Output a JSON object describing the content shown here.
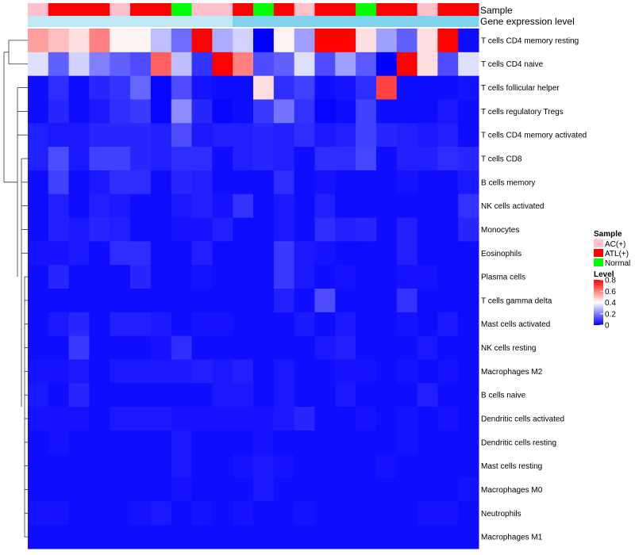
{
  "chart_data": {
    "type": "heatmap",
    "title": "",
    "annotation_labels": [
      "Sample",
      "Gene expression level"
    ],
    "sample_groups": [
      "AC(+)",
      "ATL(+)",
      "ATL(+)",
      "ATL(+)",
      "AC(+)",
      "ATL(+)",
      "ATL(+)",
      "Normal",
      "AC(+)",
      "AC(+)",
      "ATL(+)",
      "Normal",
      "ATL(+)",
      "AC(+)",
      "ATL(+)",
      "ATL(+)",
      "Normal",
      "ATL(+)",
      "ATL(+)",
      "AC(+)",
      "ATL(+)",
      "ATL(+)"
    ],
    "group_colors": {
      "AC(+)": "#ffc0cb",
      "ATL(+)": "#ff0000",
      "Normal": "#00ff00"
    },
    "expression_colors": [
      "#bfe8f4",
      "#bfe8f4",
      "#bfe8f4",
      "#bfe8f4",
      "#bfe8f4",
      "#bfe8f4",
      "#bfe8f4",
      "#bfe8f4",
      "#bfe8f4",
      "#bfe8f4",
      "#7fd3ec",
      "#7fd3ec",
      "#7fd3ec",
      "#7fd3ec",
      "#7fd3ec",
      "#7fd3ec",
      "#7fd3ec",
      "#7fd3ec",
      "#7fd3ec",
      "#7fd3ec",
      "#7fd3ec",
      "#7fd3ec"
    ],
    "rows": [
      "T cells CD4 memory resting",
      "T cells CD4 naive",
      "T cells follicular helper",
      "T cells regulatory  Tregs",
      "T cells CD4 memory activated",
      "T cells CD8",
      "B cells memory",
      "NK cells activated",
      "Monocytes",
      "Eosinophils",
      "Plasma cells",
      "T cells gamma delta",
      "Mast cells activated",
      "NK cells resting",
      "Macrophages M2",
      "B cells naive",
      "Dendritic cells activated",
      "Dendritic cells resting",
      "Mast cells resting",
      "Macrophages M0",
      "Neutrophils",
      "Macrophages M1"
    ],
    "values": [
      [
        0.55,
        0.5,
        0.45,
        0.6,
        0.42,
        0.42,
        0.3,
        0.17,
        0.8,
        0.27,
        0.33,
        0.0,
        0.42,
        0.25,
        0.8,
        0.8,
        0.45,
        0.25,
        0.15,
        0.45,
        0.8,
        0.02
      ],
      [
        0.35,
        0.15,
        0.33,
        0.2,
        0.15,
        0.12,
        0.65,
        0.3,
        0.08,
        0.8,
        0.6,
        0.12,
        0.15,
        0.35,
        0.12,
        0.25,
        0.14,
        0.0,
        0.8,
        0.45,
        0.12,
        0.35
      ],
      [
        0.02,
        0.07,
        0.02,
        0.06,
        0.08,
        0.16,
        0.01,
        0.12,
        0.03,
        0.02,
        0.02,
        0.45,
        0.07,
        0.1,
        0.02,
        0.03,
        0.07,
        0.7,
        0.02,
        0.02,
        0.02,
        0.03
      ],
      [
        0.02,
        0.06,
        0.02,
        0.04,
        0.07,
        0.09,
        0.01,
        0.22,
        0.06,
        0.01,
        0.02,
        0.09,
        0.18,
        0.08,
        0.01,
        0.02,
        0.1,
        0.02,
        0.02,
        0.02,
        0.04,
        0.02
      ],
      [
        0.05,
        0.04,
        0.04,
        0.06,
        0.06,
        0.06,
        0.05,
        0.12,
        0.04,
        0.05,
        0.05,
        0.06,
        0.05,
        0.07,
        0.04,
        0.05,
        0.1,
        0.06,
        0.05,
        0.04,
        0.05,
        0.02
      ],
      [
        0.05,
        0.12,
        0.04,
        0.1,
        0.1,
        0.06,
        0.05,
        0.07,
        0.07,
        0.02,
        0.05,
        0.06,
        0.05,
        0.02,
        0.07,
        0.07,
        0.11,
        0.02,
        0.05,
        0.05,
        0.07,
        0.06
      ],
      [
        0.02,
        0.1,
        0.02,
        0.04,
        0.07,
        0.07,
        0.02,
        0.06,
        0.05,
        0.02,
        0.02,
        0.02,
        0.07,
        0.02,
        0.03,
        0.02,
        0.02,
        0.02,
        0.03,
        0.02,
        0.02,
        0.04
      ],
      [
        0.02,
        0.05,
        0.02,
        0.05,
        0.04,
        0.02,
        0.02,
        0.04,
        0.05,
        0.03,
        0.08,
        0.02,
        0.04,
        0.02,
        0.05,
        0.02,
        0.02,
        0.02,
        0.02,
        0.02,
        0.02,
        0.08
      ],
      [
        0.02,
        0.05,
        0.04,
        0.06,
        0.05,
        0.02,
        0.02,
        0.03,
        0.03,
        0.05,
        0.02,
        0.02,
        0.04,
        0.02,
        0.07,
        0.05,
        0.06,
        0.02,
        0.05,
        0.02,
        0.02,
        0.06
      ],
      [
        0.03,
        0.03,
        0.04,
        0.02,
        0.07,
        0.07,
        0.02,
        0.02,
        0.05,
        0.02,
        0.02,
        0.02,
        0.09,
        0.04,
        0.03,
        0.02,
        0.02,
        0.02,
        0.05,
        0.02,
        0.02,
        0.02
      ],
      [
        0.02,
        0.06,
        0.02,
        0.02,
        0.02,
        0.06,
        0.02,
        0.02,
        0.03,
        0.02,
        0.02,
        0.02,
        0.09,
        0.04,
        0.02,
        0.03,
        0.02,
        0.02,
        0.03,
        0.03,
        0.02,
        0.02
      ],
      [
        0.02,
        0.02,
        0.02,
        0.02,
        0.02,
        0.02,
        0.02,
        0.02,
        0.02,
        0.02,
        0.02,
        0.02,
        0.05,
        0.02,
        0.12,
        0.02,
        0.02,
        0.02,
        0.08,
        0.02,
        0.02,
        0.02
      ],
      [
        0.02,
        0.04,
        0.06,
        0.02,
        0.05,
        0.05,
        0.04,
        0.02,
        0.03,
        0.03,
        0.02,
        0.02,
        0.02,
        0.04,
        0.02,
        0.04,
        0.02,
        0.02,
        0.03,
        0.02,
        0.04,
        0.02
      ],
      [
        0.02,
        0.02,
        0.09,
        0.02,
        0.02,
        0.02,
        0.03,
        0.07,
        0.02,
        0.02,
        0.02,
        0.02,
        0.02,
        0.02,
        0.04,
        0.05,
        0.02,
        0.02,
        0.02,
        0.04,
        0.02,
        0.02
      ],
      [
        0.03,
        0.03,
        0.04,
        0.02,
        0.04,
        0.04,
        0.04,
        0.04,
        0.05,
        0.04,
        0.05,
        0.02,
        0.04,
        0.02,
        0.02,
        0.03,
        0.03,
        0.02,
        0.03,
        0.02,
        0.03,
        0.02
      ],
      [
        0.04,
        0.02,
        0.06,
        0.02,
        0.02,
        0.02,
        0.02,
        0.02,
        0.02,
        0.04,
        0.04,
        0.02,
        0.04,
        0.02,
        0.02,
        0.04,
        0.02,
        0.02,
        0.02,
        0.05,
        0.02,
        0.02
      ],
      [
        0.03,
        0.03,
        0.03,
        0.02,
        0.04,
        0.04,
        0.04,
        0.03,
        0.03,
        0.03,
        0.03,
        0.03,
        0.04,
        0.06,
        0.02,
        0.02,
        0.03,
        0.02,
        0.03,
        0.02,
        0.03,
        0.02
      ],
      [
        0.02,
        0.03,
        0.02,
        0.02,
        0.02,
        0.02,
        0.02,
        0.04,
        0.02,
        0.02,
        0.02,
        0.03,
        0.02,
        0.02,
        0.02,
        0.02,
        0.02,
        0.02,
        0.03,
        0.02,
        0.02,
        0.02
      ],
      [
        0.02,
        0.02,
        0.02,
        0.02,
        0.02,
        0.02,
        0.02,
        0.04,
        0.02,
        0.02,
        0.03,
        0.04,
        0.03,
        0.02,
        0.02,
        0.02,
        0.02,
        0.03,
        0.02,
        0.02,
        0.02,
        0.02
      ],
      [
        0.02,
        0.02,
        0.02,
        0.02,
        0.02,
        0.02,
        0.02,
        0.03,
        0.02,
        0.02,
        0.02,
        0.04,
        0.02,
        0.02,
        0.02,
        0.02,
        0.02,
        0.02,
        0.02,
        0.02,
        0.02,
        0.03
      ],
      [
        0.03,
        0.03,
        0.02,
        0.02,
        0.02,
        0.03,
        0.04,
        0.02,
        0.03,
        0.02,
        0.03,
        0.02,
        0.02,
        0.03,
        0.02,
        0.02,
        0.02,
        0.02,
        0.02,
        0.03,
        0.03,
        0.02
      ],
      [
        0.02,
        0.02,
        0.02,
        0.02,
        0.02,
        0.02,
        0.02,
        0.02,
        0.02,
        0.02,
        0.02,
        0.02,
        0.02,
        0.02,
        0.02,
        0.02,
        0.02,
        0.02,
        0.02,
        0.02,
        0.02,
        0.02
      ]
    ],
    "legend": {
      "sample_title": "Sample",
      "sample_entries": [
        {
          "label": "AC(+)",
          "color": "#ffc0cb"
        },
        {
          "label": "ATL(+)",
          "color": "#ff0000"
        },
        {
          "label": "Normal",
          "color": "#00ff00"
        }
      ],
      "level_title": "Level",
      "level_ticks": [
        0.8,
        0.6,
        0.4,
        0.2,
        0
      ],
      "color_range": [
        0,
        0.8
      ],
      "colors": {
        "low": "#0000ff",
        "mid": "#ffffff",
        "high": "#ff0000"
      }
    }
  }
}
